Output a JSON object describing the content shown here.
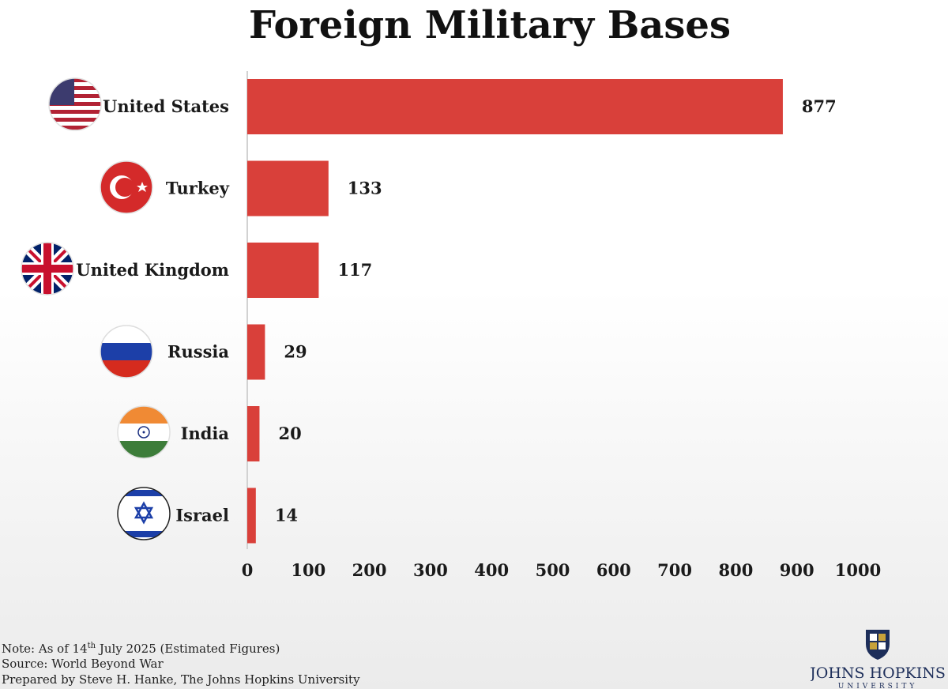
{
  "chart_data": {
    "type": "bar",
    "orientation": "horizontal",
    "title": "Foreign Military Bases",
    "categories": [
      "United States",
      "Turkey",
      "United Kingdom",
      "Russia",
      "India",
      "Israel"
    ],
    "values": [
      877,
      133,
      117,
      29,
      20,
      14
    ],
    "xlim": [
      0,
      1000
    ],
    "xticks": [
      0,
      100,
      200,
      300,
      400,
      500,
      600,
      700,
      800,
      900,
      1000
    ],
    "grid": false,
    "bar_color": "#d9403a",
    "flags": [
      "us-flag-icon",
      "turkey-flag-icon",
      "uk-flag-icon",
      "russia-flag-icon",
      "india-flag-icon",
      "israel-flag-icon"
    ]
  },
  "footer": {
    "note_prefix": "Note: As of 14",
    "note_sup": "th",
    "note_suffix": " July 2025 (Estimated Figures)",
    "source": "Source: World Beyond War",
    "prepared": "Prepared by Steve H. Hanke, The Johns Hopkins University"
  },
  "logo": {
    "name": "Johns Hopkins",
    "sub": "UNIVERSITY",
    "primary_color": "#1d2e5a"
  }
}
